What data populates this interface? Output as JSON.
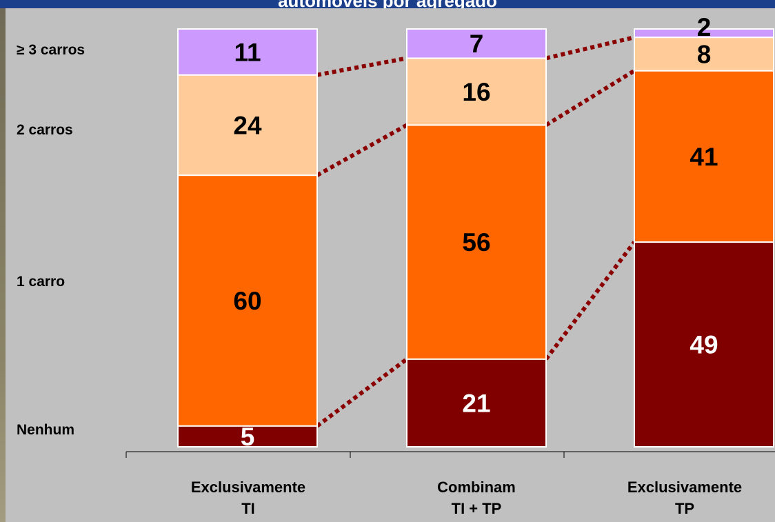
{
  "chart_data": {
    "type": "bar",
    "stacked": true,
    "title": "automóveis por agregado",
    "categories": [
      [
        "Exclusivamente",
        "TI"
      ],
      [
        "Combinam",
        "TI + TP"
      ],
      [
        "Exclusivamente",
        "TP"
      ]
    ],
    "row_labels": [
      "≥ 3 carros",
      "2 carros",
      "1 carro",
      "Nenhum"
    ],
    "series": [
      {
        "name": "Nenhum",
        "values": [
          5,
          21,
          49
        ],
        "color": "#800000",
        "label_color": "#ffffff"
      },
      {
        "name": "1 carro",
        "values": [
          60,
          56,
          41
        ],
        "color": "#ff6600",
        "label_color": "#000000"
      },
      {
        "name": "2 carros",
        "values": [
          24,
          16,
          8
        ],
        "color": "#ffcc99",
        "label_color": "#000000"
      },
      {
        "name": "≥ 3 carros",
        "values": [
          11,
          7,
          2
        ],
        "color": "#cc99ff",
        "label_color": "#000000"
      }
    ],
    "ylim": [
      0,
      100
    ],
    "connector_color": "#8b0000",
    "grid": false
  }
}
